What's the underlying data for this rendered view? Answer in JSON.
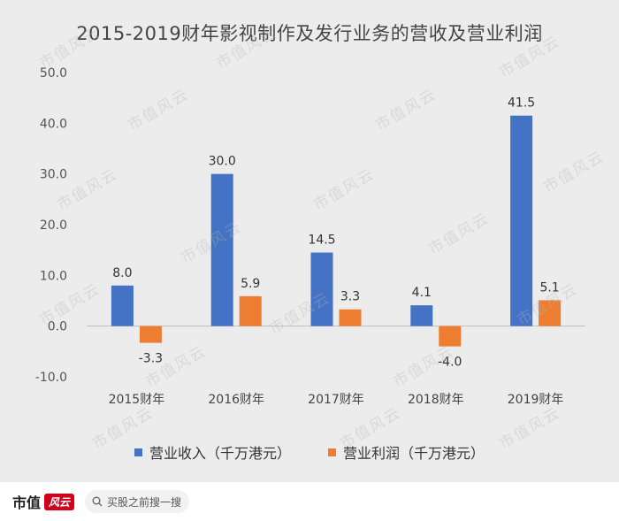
{
  "chart_data": {
    "type": "bar",
    "title": "2015-2019财年影视制作及发行业务的营收及营业利润",
    "categories": [
      "2015财年",
      "2016财年",
      "2017财年",
      "2018财年",
      "2019财年"
    ],
    "series": [
      {
        "name": "营业收入（千万港元）",
        "color": "#4472c4",
        "values": [
          8.0,
          30.0,
          14.5,
          4.1,
          41.5
        ],
        "labels": [
          "8.0",
          "30.0",
          "14.5",
          "4.1",
          "41.5"
        ]
      },
      {
        "name": "营业利润（千万港元）",
        "color": "#ed7d31",
        "values": [
          -3.3,
          5.9,
          3.3,
          -4.0,
          5.1
        ],
        "labels": [
          "-3.3",
          "5.9",
          "3.3",
          "-4.0",
          "5.1"
        ]
      }
    ],
    "ylim": [
      -10.0,
      50.0
    ],
    "yticks": [
      "-10.0",
      "0.0",
      "10.0",
      "20.0",
      "30.0",
      "40.0",
      "50.0"
    ],
    "grid": false,
    "legend_position": "bottom"
  },
  "watermark": "市值风云",
  "footer": {
    "brand": "市值",
    "brand_logo": "风云",
    "search_icon": "search-icon",
    "search_placeholder": "买股之前搜一搜"
  }
}
